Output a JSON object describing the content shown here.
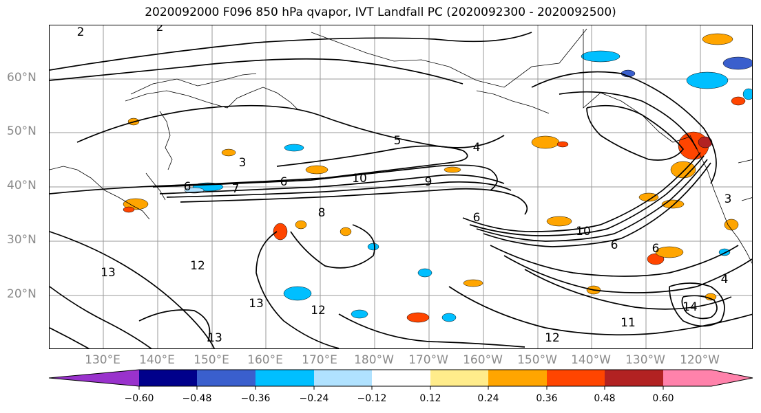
{
  "title": "2020092000 F096 850 hPa qvapor, IVT Landfall PC (2020092300 - 2020092500)",
  "map": {
    "lat_labels": [
      "60°N",
      "50°N",
      "40°N",
      "30°N",
      "20°N"
    ],
    "lon_labels": [
      "130°E",
      "140°E",
      "150°E",
      "160°E",
      "170°E",
      "180°W",
      "170°W",
      "160°W",
      "150°W",
      "140°W",
      "130°W",
      "120°W"
    ],
    "contour_labels": [
      "2",
      "2",
      "3",
      "3",
      "4",
      "4",
      "5",
      "6",
      "6",
      "6",
      "6",
      "6",
      "7",
      "8",
      "9",
      "10",
      "10",
      "11",
      "12",
      "12",
      "12",
      "13",
      "13",
      "13",
      "14"
    ]
  },
  "colorbar": {
    "colors": [
      "#9932cc",
      "#00008b",
      "#3a5fcd",
      "#00bfff",
      "#b0e2ff",
      "#ffffff",
      "#ffec8b",
      "#ffa500",
      "#ff4500",
      "#b22222",
      "#ff82ab"
    ],
    "tick_labels": [
      "−0.60",
      "−0.48",
      "−0.36",
      "−0.24",
      "−0.12",
      "0.12",
      "0.24",
      "0.36",
      "0.48",
      "0.60"
    ]
  }
}
